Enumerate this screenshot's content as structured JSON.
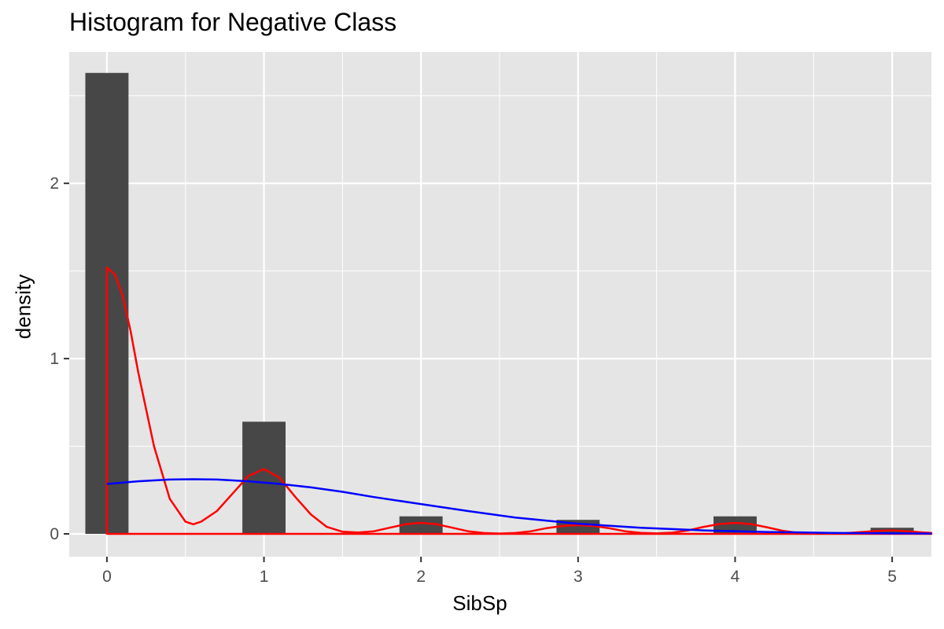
{
  "chart_data": {
    "type": "bar",
    "title": "Histogram for Negative Class",
    "xlabel": "SibSp",
    "ylabel": "density",
    "xlim": [
      -0.24,
      5.25
    ],
    "ylim": [
      -0.13,
      2.75
    ],
    "x_ticks": [
      "0",
      "1",
      "2",
      "3",
      "4",
      "5"
    ],
    "y_ticks": [
      "0",
      "1",
      "2"
    ],
    "grid": true,
    "bar_width": 0.275,
    "bars": [
      {
        "x": 0,
        "value": 2.63
      },
      {
        "x": 1,
        "value": 0.64
      },
      {
        "x": 2,
        "value": 0.1
      },
      {
        "x": 3,
        "value": 0.08
      },
      {
        "x": 4,
        "value": 0.1
      },
      {
        "x": 5,
        "value": 0.035
      }
    ],
    "bar_color": "#474747",
    "panel_color": "#e5e5e5",
    "curves": [
      {
        "color": "#ff0000",
        "points": [
          [
            0,
            1.52
          ],
          [
            0.05,
            1.48
          ],
          [
            0.1,
            1.36
          ],
          [
            0.15,
            1.16
          ],
          [
            0.2,
            0.92
          ],
          [
            0.3,
            0.5
          ],
          [
            0.4,
            0.2
          ],
          [
            0.5,
            0.07
          ],
          [
            0.55,
            0.055
          ],
          [
            0.6,
            0.07
          ],
          [
            0.7,
            0.13
          ],
          [
            0.8,
            0.23
          ],
          [
            0.9,
            0.33
          ],
          [
            1.0,
            0.37
          ],
          [
            1.1,
            0.32
          ],
          [
            1.2,
            0.21
          ],
          [
            1.3,
            0.11
          ],
          [
            1.4,
            0.04
          ],
          [
            1.5,
            0.012
          ],
          [
            1.6,
            0.008
          ],
          [
            1.7,
            0.015
          ],
          [
            1.8,
            0.035
          ],
          [
            1.9,
            0.055
          ],
          [
            2.0,
            0.063
          ],
          [
            2.1,
            0.055
          ],
          [
            2.2,
            0.035
          ],
          [
            2.3,
            0.015
          ],
          [
            2.4,
            0.005
          ],
          [
            2.5,
            0.002
          ],
          [
            2.6,
            0.005
          ],
          [
            2.7,
            0.015
          ],
          [
            2.8,
            0.033
          ],
          [
            2.9,
            0.045
          ],
          [
            3.0,
            0.05
          ],
          [
            3.1,
            0.045
          ],
          [
            3.2,
            0.032
          ],
          [
            3.3,
            0.015
          ],
          [
            3.4,
            0.006
          ],
          [
            3.5,
            0.003
          ],
          [
            3.6,
            0.007
          ],
          [
            3.7,
            0.02
          ],
          [
            3.8,
            0.04
          ],
          [
            3.9,
            0.056
          ],
          [
            4.0,
            0.063
          ],
          [
            4.1,
            0.056
          ],
          [
            4.2,
            0.038
          ],
          [
            4.3,
            0.018
          ],
          [
            4.4,
            0.006
          ],
          [
            4.5,
            0.002
          ],
          [
            4.6,
            0.002
          ],
          [
            4.7,
            0.004
          ],
          [
            4.8,
            0.01
          ],
          [
            4.9,
            0.017
          ],
          [
            5.0,
            0.02
          ],
          [
            5.1,
            0.015
          ],
          [
            5.2,
            0.008
          ],
          [
            5.25,
            0.005
          ]
        ]
      },
      {
        "color": "#0000ff",
        "points": [
          [
            0,
            0.285
          ],
          [
            0.2,
            0.3
          ],
          [
            0.4,
            0.31
          ],
          [
            0.55,
            0.312
          ],
          [
            0.7,
            0.31
          ],
          [
            0.9,
            0.3
          ],
          [
            1.1,
            0.285
          ],
          [
            1.3,
            0.265
          ],
          [
            1.5,
            0.24
          ],
          [
            1.7,
            0.21
          ],
          [
            2.0,
            0.17
          ],
          [
            2.3,
            0.13
          ],
          [
            2.6,
            0.093
          ],
          [
            3.0,
            0.058
          ],
          [
            3.4,
            0.035
          ],
          [
            3.8,
            0.02
          ],
          [
            4.2,
            0.011
          ],
          [
            4.6,
            0.006
          ],
          [
            5.0,
            0.003
          ],
          [
            5.25,
            0.002
          ]
        ]
      }
    ]
  }
}
